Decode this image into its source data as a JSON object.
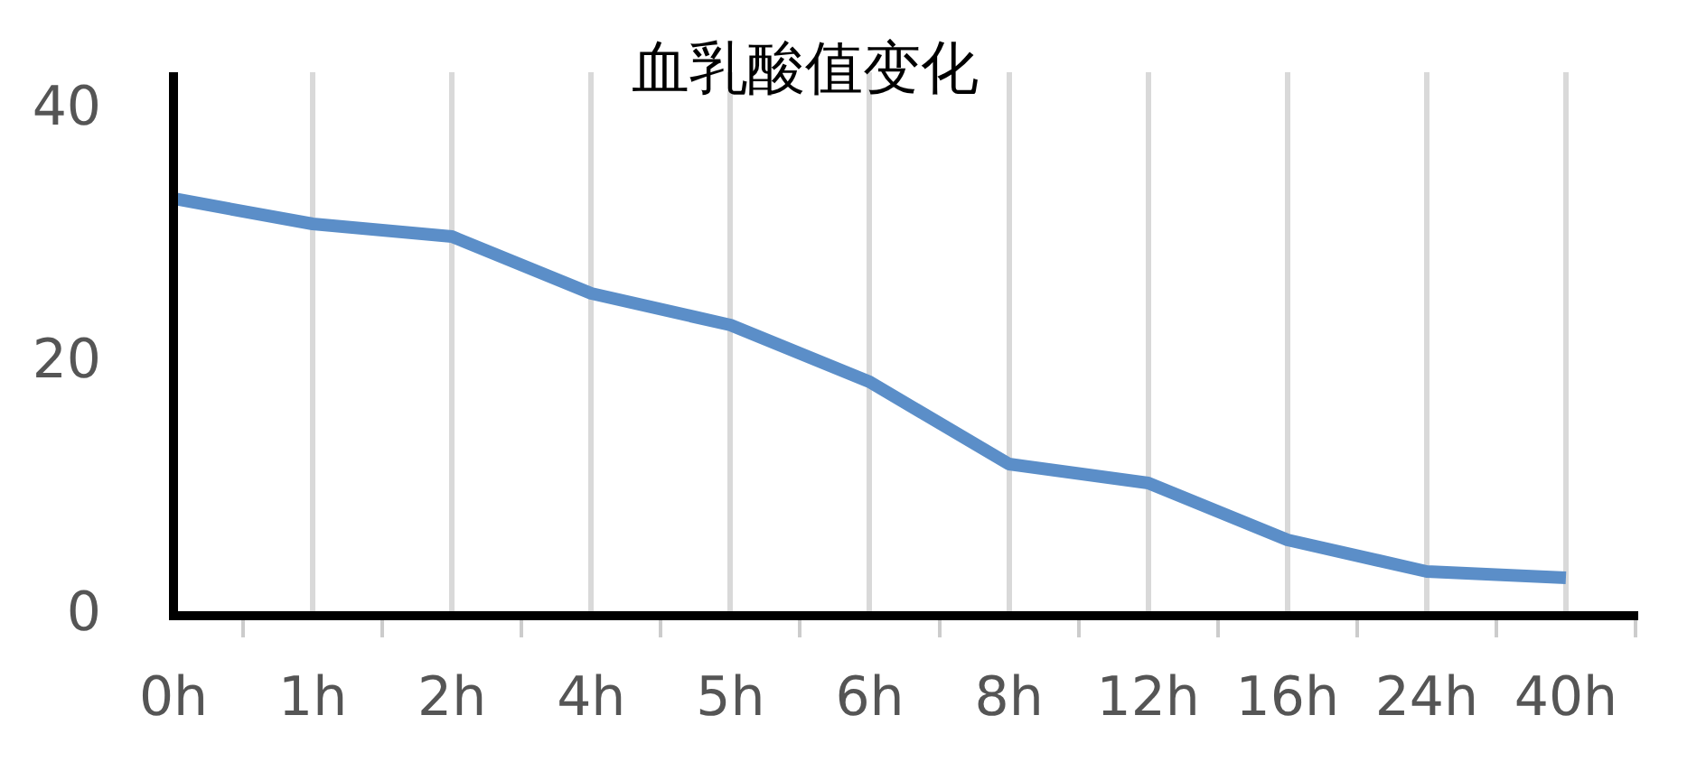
{
  "chart_data": {
    "type": "line",
    "title": "血乳酸值变化",
    "categories": [
      "0h",
      "1h",
      "2h",
      "4h",
      "5h",
      "6h",
      "8h",
      "12h",
      "16h",
      "24h",
      "40h"
    ],
    "series": [
      {
        "color": "#5b8ec8",
        "values": [
          33,
          31,
          30,
          25.5,
          23,
          18.5,
          12,
          10.5,
          6,
          3.5,
          3
        ]
      }
    ],
    "ylim": [
      0,
      43
    ],
    "yticks": [
      0,
      20,
      40
    ],
    "grid": "x",
    "legend": false,
    "marker": "none",
    "line_style": "solid"
  }
}
